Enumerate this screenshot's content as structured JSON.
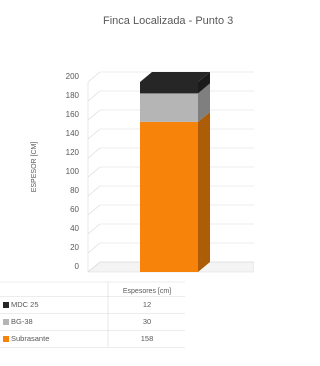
{
  "chart_data": {
    "type": "bar",
    "stacked": true,
    "three_d": true,
    "title": "Finca Localizada - Punto 3",
    "y_label": "ESPESOR [CM]",
    "categories": [
      "Espesores [cm]"
    ],
    "series": [
      {
        "name": "MDC 25",
        "color": "#262626",
        "values": [
          12
        ]
      },
      {
        "name": "BG-38",
        "color": "#b5b5b5",
        "values": [
          30
        ]
      },
      {
        "name": "Subrasante",
        "color": "#f7830a",
        "values": [
          158
        ]
      }
    ],
    "ylim": [
      0,
      200
    ],
    "yticks": [
      0,
      20,
      40,
      60,
      80,
      100,
      120,
      140,
      160,
      180,
      200
    ],
    "grid": true,
    "data_table": true
  }
}
